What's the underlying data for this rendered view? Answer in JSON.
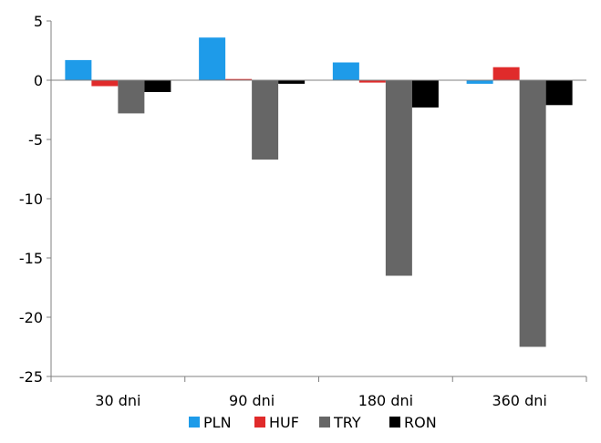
{
  "chart_data": {
    "type": "bar",
    "title": "",
    "xlabel": "",
    "ylabel": "",
    "categories": [
      "30 dni",
      "90 dni",
      "180 dni",
      "360 dni"
    ],
    "ylim": [
      -25,
      5
    ],
    "yticks": [
      5,
      0,
      -5,
      -10,
      -15,
      -20,
      -25
    ],
    "grid": false,
    "legend_position": "bottom",
    "series": [
      {
        "name": "PLN",
        "color": "#1E9BE9",
        "values": [
          1.7,
          3.6,
          1.5,
          -0.3
        ]
      },
      {
        "name": "HUF",
        "color": "#E02B2B",
        "values": [
          -0.5,
          0.1,
          -0.2,
          1.1
        ]
      },
      {
        "name": "TRY",
        "color": "#666666",
        "values": [
          -2.8,
          -6.7,
          -16.5,
          -22.5
        ]
      },
      {
        "name": "RON",
        "color": "#000000",
        "values": [
          -1.0,
          -0.3,
          -2.3,
          -2.1
        ]
      }
    ]
  }
}
